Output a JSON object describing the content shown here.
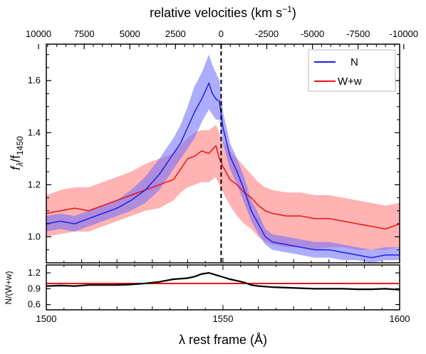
{
  "chart_data": [
    {
      "panel": "main",
      "type": "area",
      "title": "",
      "xlabel": "λ rest frame (Å)",
      "ylabel_main": "f",
      "ylabel_sub_lambda": "λ",
      "ylabel_slash": "/f",
      "ylabel_sub_1450": "1450",
      "xlim": [
        1500,
        1600
      ],
      "ylim": [
        0.9,
        1.74
      ],
      "x_ticks": [
        1500,
        1550,
        1600
      ],
      "y_ticks": [
        1.0,
        1.2,
        1.4,
        1.6
      ],
      "y_tick_labels": [
        "1.0",
        "1.2",
        "1.4",
        "1.6"
      ],
      "top_axis": {
        "label": "relative velocities (km s",
        "label_sup": "−1",
        "label_end": ")",
        "ticks_kms": [
          10000,
          7500,
          5000,
          2500,
          0,
          -2500,
          -5000,
          -7500,
          -10000
        ],
        "tick_labels": [
          "10000",
          "7500",
          "5000",
          "2500",
          "0",
          "-2500",
          "-5000",
          "-7500",
          "-10000"
        ]
      },
      "vline": {
        "x": 1549.48,
        "style": "dashed"
      },
      "legend": {
        "position": "top-right",
        "entries": [
          "N",
          "W+w"
        ]
      },
      "series": [
        {
          "name": "N",
          "color": "#1f1fe0",
          "band_color": "#6a6aff",
          "x": [
            1500,
            1504,
            1508,
            1512,
            1516,
            1520,
            1524,
            1528,
            1532,
            1536,
            1538,
            1540,
            1542,
            1544,
            1546,
            1547,
            1548,
            1549,
            1550,
            1552,
            1554,
            1556,
            1558,
            1560,
            1562,
            1564,
            1568,
            1572,
            1576,
            1580,
            1584,
            1588,
            1592,
            1596,
            1600
          ],
          "y": [
            1.05,
            1.06,
            1.05,
            1.07,
            1.09,
            1.11,
            1.14,
            1.18,
            1.24,
            1.32,
            1.36,
            1.42,
            1.48,
            1.53,
            1.59,
            1.55,
            1.53,
            1.52,
            1.42,
            1.31,
            1.25,
            1.18,
            1.1,
            1.05,
            1.0,
            0.98,
            0.97,
            0.96,
            0.95,
            0.95,
            0.94,
            0.93,
            0.92,
            0.93,
            0.93
          ],
          "y_low": [
            1.02,
            1.03,
            1.02,
            1.04,
            1.06,
            1.08,
            1.1,
            1.13,
            1.18,
            1.26,
            1.3,
            1.34,
            1.38,
            1.44,
            1.49,
            1.47,
            1.45,
            1.45,
            1.36,
            1.26,
            1.2,
            1.13,
            1.06,
            1.01,
            0.97,
            0.95,
            0.94,
            0.93,
            0.92,
            0.92,
            0.91,
            0.91,
            0.9,
            0.91,
            0.91
          ],
          "y_high": [
            1.08,
            1.09,
            1.08,
            1.1,
            1.12,
            1.14,
            1.18,
            1.23,
            1.3,
            1.38,
            1.43,
            1.5,
            1.58,
            1.63,
            1.7,
            1.66,
            1.63,
            1.6,
            1.48,
            1.36,
            1.3,
            1.23,
            1.14,
            1.09,
            1.03,
            1.01,
            1.0,
            0.99,
            0.98,
            0.98,
            0.97,
            0.96,
            0.95,
            0.96,
            0.96
          ]
        },
        {
          "name": "W+w",
          "color": "#ee1111",
          "band_color": "#ff8080",
          "x": [
            1500,
            1504,
            1508,
            1512,
            1516,
            1520,
            1524,
            1528,
            1532,
            1536,
            1538,
            1540,
            1542,
            1544,
            1546,
            1548,
            1549,
            1550,
            1552,
            1554,
            1556,
            1558,
            1560,
            1562,
            1564,
            1568,
            1572,
            1576,
            1580,
            1584,
            1588,
            1592,
            1596,
            1600
          ],
          "y": [
            1.09,
            1.1,
            1.11,
            1.1,
            1.12,
            1.14,
            1.16,
            1.18,
            1.2,
            1.22,
            1.26,
            1.3,
            1.31,
            1.33,
            1.32,
            1.35,
            1.3,
            1.27,
            1.22,
            1.2,
            1.17,
            1.15,
            1.12,
            1.1,
            1.09,
            1.08,
            1.08,
            1.07,
            1.07,
            1.06,
            1.05,
            1.04,
            1.03,
            1.05
          ],
          "y_low": [
            1.0,
            1.01,
            1.02,
            1.02,
            1.04,
            1.06,
            1.08,
            1.1,
            1.11,
            1.14,
            1.17,
            1.19,
            1.2,
            1.21,
            1.21,
            1.23,
            1.2,
            1.17,
            1.12,
            1.08,
            1.05,
            1.03,
            1.0,
            0.98,
            0.97,
            0.96,
            0.96,
            0.95,
            0.96,
            0.96,
            0.95,
            0.95,
            0.95,
            0.96
          ],
          "y_high": [
            1.16,
            1.18,
            1.19,
            1.19,
            1.21,
            1.23,
            1.25,
            1.28,
            1.3,
            1.32,
            1.35,
            1.38,
            1.4,
            1.41,
            1.41,
            1.43,
            1.4,
            1.37,
            1.33,
            1.3,
            1.27,
            1.24,
            1.21,
            1.19,
            1.18,
            1.17,
            1.17,
            1.16,
            1.16,
            1.15,
            1.14,
            1.13,
            1.12,
            1.13
          ]
        }
      ]
    },
    {
      "panel": "ratio",
      "type": "line",
      "ylabel": "N/(W+w)",
      "xlim": [
        1500,
        1600
      ],
      "ylim": [
        0.5,
        1.35
      ],
      "y_ticks": [
        0.6,
        0.9,
        1.2
      ],
      "y_tick_labels": [
        "0.6",
        "0.9",
        "1.2"
      ],
      "x_ticks": [
        1500,
        1550,
        1600
      ],
      "x_tick_labels": [
        "1500",
        "1550",
        "1600"
      ],
      "reference_line": {
        "y": 1.0,
        "color": "#ee1111"
      },
      "series": [
        {
          "color": "#000000",
          "x": [
            1500,
            1504,
            1508,
            1512,
            1516,
            1520,
            1524,
            1528,
            1532,
            1536,
            1540,
            1542,
            1544,
            1546,
            1548,
            1550,
            1552,
            1554,
            1556,
            1558,
            1560,
            1564,
            1568,
            1572,
            1576,
            1580,
            1584,
            1588,
            1592,
            1596,
            1600
          ],
          "y": [
            0.95,
            0.96,
            0.95,
            0.97,
            0.97,
            0.97,
            0.98,
            1.0,
            1.03,
            1.08,
            1.1,
            1.13,
            1.18,
            1.2,
            1.16,
            1.12,
            1.08,
            1.05,
            1.02,
            0.97,
            0.95,
            0.93,
            0.92,
            0.91,
            0.9,
            0.9,
            0.9,
            0.89,
            0.89,
            0.9,
            0.88
          ]
        }
      ]
    }
  ]
}
